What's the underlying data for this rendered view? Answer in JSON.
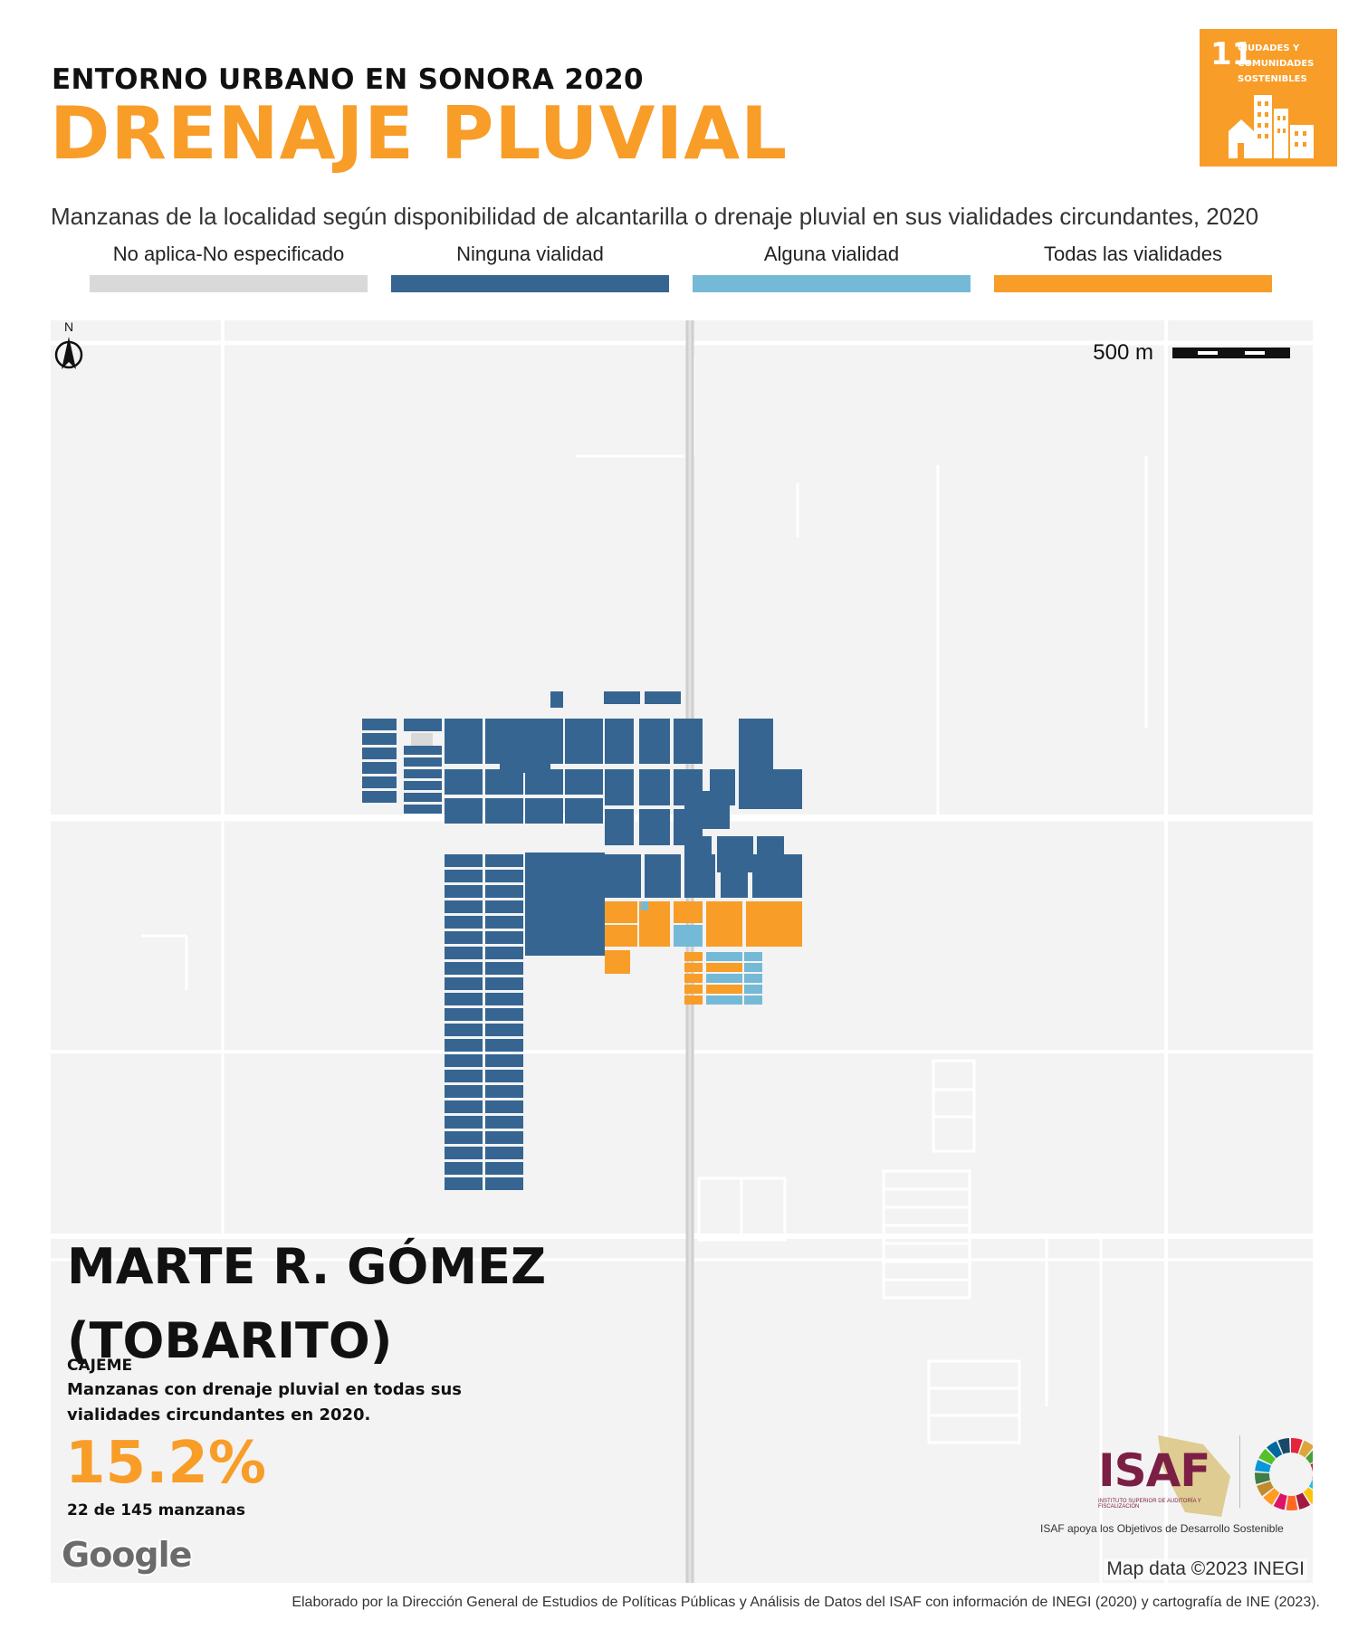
{
  "header": {
    "kicker": "ENTORNO URBANO EN SONORA 2020",
    "title": "DRENAJE PLUVIAL",
    "subtitle": "Manzanas de la localidad según disponibilidad de alcantarilla o drenaje pluvial en sus vialidades circundantes, 2020"
  },
  "sdg_badge": {
    "number": "11",
    "label": "CIUDADES Y COMUNIDADES SOSTENIBLES",
    "color": "#f89d28",
    "icon": "city-buildings-icon"
  },
  "legend": [
    {
      "label": "No aplica-No especificado",
      "color": "#d9d9d9"
    },
    {
      "label": "Ninguna vialidad",
      "color": "#366592"
    },
    {
      "label": "Alguna vialidad",
      "color": "#74bad7"
    },
    {
      "label": "Todas las vialidades",
      "color": "#f89d28"
    }
  ],
  "map": {
    "scale_label": "500 m",
    "north_label": "N",
    "attribution": "Map data ©2023 INEGI",
    "provider": "Google",
    "background_color": "#f3f3f3",
    "road_color": "#ffffff",
    "highway_color": "#cfcfcf"
  },
  "locality": {
    "name": "MARTE R. GÓMEZ (TOBARITO)",
    "municipality": "CAJEME",
    "stat_description": "Manzanas con drenaje pluvial en todas sus vialidades circundantes en 2020.",
    "stat_value": "15.2%",
    "stat_count": "22 de 145 manzanas"
  },
  "isaf": {
    "logo_text": "ISAF",
    "logo_subtext": "INSTITUTO SUPERIOR DE AUDITORÍA Y FISCALIZACIÓN",
    "caption": "ISAF apoya los Objetivos de Desarrollo Sostenible",
    "brand_color": "#7b1f45",
    "sdg_wheel": "sdg-wheel-icon"
  },
  "footer": "Elaborado por la Dirección General de Estudios de Políticas Públicas y Análisis de Datos del ISAF con información de INEGI (2020) y cartografía de INE (2023)."
}
